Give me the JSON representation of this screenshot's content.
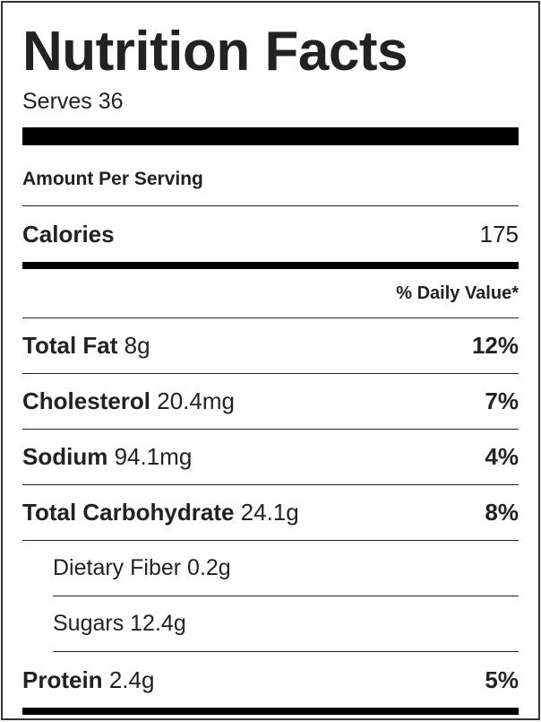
{
  "label": {
    "title": "Nutrition Facts",
    "serves": "Serves 36",
    "amount_per_serving": "Amount Per Serving",
    "calories_label": "Calories",
    "calories_value": "175",
    "daily_value_header": "% Daily Value*",
    "nutrients": [
      {
        "name": "Total Fat",
        "amount": "8g",
        "percent": "12%"
      },
      {
        "name": "Cholesterol",
        "amount": "20.4mg",
        "percent": "7%"
      },
      {
        "name": "Sodium",
        "amount": "94.1mg",
        "percent": "4%"
      },
      {
        "name": "Total Carbohydrate",
        "amount": "24.1g",
        "percent": "8%"
      }
    ],
    "sub_nutrients": [
      {
        "text": "Dietary Fiber 0.2g"
      },
      {
        "text": "Sugars 12.4g"
      }
    ],
    "protein": {
      "name": "Protein",
      "amount": "2.4g",
      "percent": "5%"
    }
  }
}
